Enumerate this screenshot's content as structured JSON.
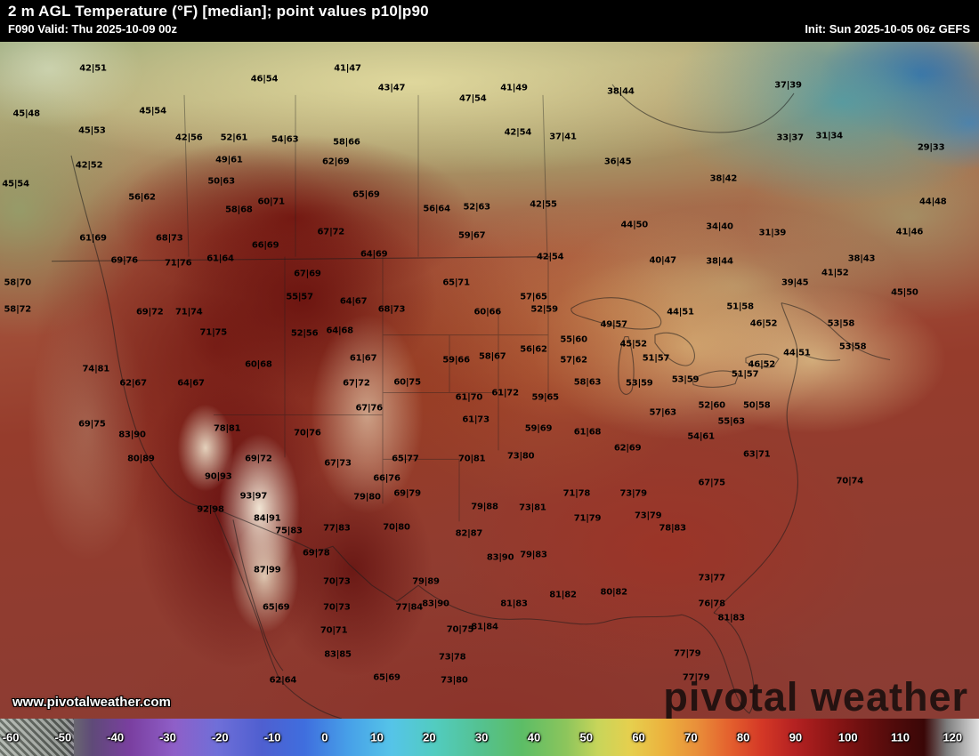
{
  "header": {
    "title": "2 m AGL Temperature (°F) [median]; point values p10|p90",
    "valid": "F090 Valid: Thu 2025-10-09 00z",
    "init": "Init: Sun 2025-10-05 06z GEFS"
  },
  "watermark": {
    "brand": "pivotal weather",
    "url": "www.pivotalweather.com"
  },
  "colorbar": {
    "unit": "°F",
    "range": [
      -60,
      120
    ],
    "ticks": [
      -60,
      -50,
      -40,
      -30,
      -20,
      -10,
      0,
      10,
      20,
      30,
      40,
      50,
      60,
      70,
      80,
      90,
      100,
      110,
      120
    ],
    "stops": [
      {
        "v": -60,
        "c": "#98a096"
      },
      {
        "v": -48,
        "c": "#6e746e"
      },
      {
        "v": -43,
        "c": "#5f4a78"
      },
      {
        "v": -36,
        "c": "#7a3fa0"
      },
      {
        "v": -28,
        "c": "#8f5fc8"
      },
      {
        "v": -20,
        "c": "#6f6fd8"
      },
      {
        "v": -12,
        "c": "#4f5fd0"
      },
      {
        "v": -4,
        "c": "#3f6ede"
      },
      {
        "v": 4,
        "c": "#47a0e8"
      },
      {
        "v": 12,
        "c": "#55c4e8"
      },
      {
        "v": 20,
        "c": "#52ccc0"
      },
      {
        "v": 28,
        "c": "#54c292"
      },
      {
        "v": 36,
        "c": "#5cbd66"
      },
      {
        "v": 44,
        "c": "#8cc55c"
      },
      {
        "v": 50,
        "c": "#c8d55a"
      },
      {
        "v": 56,
        "c": "#e6cf4e"
      },
      {
        "v": 62,
        "c": "#ecb23e"
      },
      {
        "v": 68,
        "c": "#e9903a"
      },
      {
        "v": 74,
        "c": "#e4622e"
      },
      {
        "v": 80,
        "c": "#d43826"
      },
      {
        "v": 86,
        "c": "#b52222"
      },
      {
        "v": 92,
        "c": "#931717"
      },
      {
        "v": 98,
        "c": "#701010"
      },
      {
        "v": 104,
        "c": "#520b0b"
      },
      {
        "v": 110,
        "c": "#3a0707"
      },
      {
        "v": 114,
        "c": "#7d7d7d"
      },
      {
        "v": 120,
        "c": "#e0e0e0"
      }
    ]
  },
  "map": {
    "points": [
      [
        9.5,
        3.9,
        "42|51"
      ],
      [
        27.0,
        5.5,
        "46|54"
      ],
      [
        35.5,
        3.9,
        "41|47"
      ],
      [
        40.0,
        6.8,
        "43|47"
      ],
      [
        52.5,
        6.8,
        "41|49"
      ],
      [
        63.4,
        7.3,
        "38|44"
      ],
      [
        80.5,
        6.4,
        "37|39"
      ],
      [
        2.7,
        10.6,
        "45|48"
      ],
      [
        15.6,
        10.3,
        "45|54"
      ],
      [
        48.3,
        8.4,
        "47|54"
      ],
      [
        9.4,
        13.1,
        "45|53"
      ],
      [
        19.3,
        14.2,
        "42|56"
      ],
      [
        23.9,
        14.2,
        "52|61"
      ],
      [
        29.1,
        14.5,
        "54|63"
      ],
      [
        35.4,
        14.9,
        "58|66"
      ],
      [
        52.9,
        13.4,
        "42|54"
      ],
      [
        57.5,
        14.0,
        "37|41"
      ],
      [
        80.7,
        14.2,
        "33|37"
      ],
      [
        84.7,
        13.9,
        "31|34"
      ],
      [
        95.1,
        15.6,
        "29|33"
      ],
      [
        9.1,
        18.2,
        "42|52"
      ],
      [
        23.4,
        17.5,
        "49|61"
      ],
      [
        34.3,
        17.8,
        "62|69"
      ],
      [
        63.1,
        17.8,
        "36|45"
      ],
      [
        73.9,
        20.3,
        "38|42"
      ],
      [
        1.6,
        21.0,
        "45|54"
      ],
      [
        22.6,
        20.6,
        "50|63"
      ],
      [
        14.5,
        23.0,
        "56|62"
      ],
      [
        37.4,
        22.6,
        "65|69"
      ],
      [
        55.5,
        24.0,
        "42|55"
      ],
      [
        95.3,
        23.6,
        "44|48"
      ],
      [
        24.4,
        24.8,
        "58|68"
      ],
      [
        27.7,
        23.6,
        "60|71"
      ],
      [
        44.6,
        24.7,
        "56|64"
      ],
      [
        48.7,
        24.4,
        "52|63"
      ],
      [
        64.8,
        27.1,
        "44|50"
      ],
      [
        73.5,
        27.3,
        "34|40"
      ],
      [
        78.9,
        28.3,
        "31|39"
      ],
      [
        92.9,
        28.1,
        "41|46"
      ],
      [
        48.2,
        28.6,
        "59|67"
      ],
      [
        33.8,
        28.1,
        "67|72"
      ],
      [
        17.3,
        29.1,
        "68|73"
      ],
      [
        9.5,
        29.1,
        "61|69"
      ],
      [
        27.1,
        30.1,
        "66|69"
      ],
      [
        56.2,
        31.8,
        "42|54"
      ],
      [
        73.5,
        32.5,
        "38|44"
      ],
      [
        88.0,
        32.1,
        "38|43"
      ],
      [
        12.7,
        32.3,
        "69|76"
      ],
      [
        18.2,
        32.7,
        "71|76"
      ],
      [
        22.5,
        32.1,
        "61|64"
      ],
      [
        38.2,
        31.4,
        "64|69"
      ],
      [
        46.6,
        35.6,
        "65|71"
      ],
      [
        31.4,
        34.3,
        "67|69"
      ],
      [
        30.6,
        37.7,
        "55|57"
      ],
      [
        1.8,
        35.6,
        "58|70"
      ],
      [
        1.8,
        39.5,
        "58|72"
      ],
      [
        15.3,
        39.9,
        "69|72"
      ],
      [
        19.3,
        39.9,
        "71|74"
      ],
      [
        21.8,
        43.0,
        "71|75"
      ],
      [
        36.1,
        38.4,
        "64|67"
      ],
      [
        40.0,
        39.5,
        "68|73"
      ],
      [
        54.5,
        37.7,
        "57|65"
      ],
      [
        55.6,
        39.5,
        "52|59"
      ],
      [
        49.8,
        39.9,
        "60|66"
      ],
      [
        58.6,
        44.0,
        "55|60"
      ],
      [
        81.2,
        35.6,
        "39|45"
      ],
      [
        85.3,
        34.2,
        "41|52"
      ],
      [
        92.4,
        37.0,
        "45|50"
      ],
      [
        75.6,
        39.2,
        "51|58"
      ],
      [
        78.0,
        41.6,
        "46|52"
      ],
      [
        85.9,
        41.6,
        "53|58"
      ],
      [
        62.7,
        41.8,
        "49|57"
      ],
      [
        67.0,
        46.8,
        "51|57"
      ],
      [
        69.5,
        40.0,
        "44|51"
      ],
      [
        31.1,
        43.1,
        "52|56"
      ],
      [
        34.7,
        42.7,
        "64|68"
      ],
      [
        37.1,
        46.8,
        "61|67"
      ],
      [
        36.4,
        50.4,
        "67|72"
      ],
      [
        37.7,
        54.2,
        "67|76"
      ],
      [
        41.6,
        50.3,
        "60|75"
      ],
      [
        46.6,
        47.1,
        "59|66"
      ],
      [
        50.3,
        46.5,
        "58|67"
      ],
      [
        54.5,
        45.5,
        "56|62"
      ],
      [
        58.6,
        47.1,
        "57|62"
      ],
      [
        60.0,
        50.3,
        "58|63"
      ],
      [
        65.3,
        50.4,
        "53|59"
      ],
      [
        70.0,
        49.9,
        "53|59"
      ],
      [
        76.1,
        49.1,
        "51|57"
      ],
      [
        77.8,
        47.7,
        "46|52"
      ],
      [
        81.4,
        46.0,
        "44|51"
      ],
      [
        87.1,
        45.1,
        "53|58"
      ],
      [
        64.7,
        44.7,
        "45|52"
      ],
      [
        13.6,
        50.5,
        "62|67"
      ],
      [
        19.5,
        50.5,
        "64|67"
      ],
      [
        26.4,
        47.7,
        "60|68"
      ],
      [
        9.8,
        48.3,
        "74|81"
      ],
      [
        9.4,
        56.5,
        "69|75"
      ],
      [
        13.5,
        58.1,
        "83|90"
      ],
      [
        14.4,
        61.6,
        "80|89"
      ],
      [
        22.3,
        64.3,
        "90|93"
      ],
      [
        25.9,
        67.1,
        "93|97"
      ],
      [
        27.3,
        70.4,
        "84|91"
      ],
      [
        21.5,
        69.1,
        "92|98"
      ],
      [
        29.5,
        72.3,
        "75|83"
      ],
      [
        27.3,
        78.1,
        "87|99"
      ],
      [
        32.3,
        75.6,
        "69|78"
      ],
      [
        31.4,
        57.8,
        "70|76"
      ],
      [
        23.2,
        57.1,
        "78|81"
      ],
      [
        26.4,
        61.6,
        "69|72"
      ],
      [
        34.5,
        62.3,
        "67|73"
      ],
      [
        41.4,
        61.6,
        "65|77"
      ],
      [
        39.5,
        64.5,
        "66|76"
      ],
      [
        41.6,
        66.8,
        "69|79"
      ],
      [
        37.5,
        67.3,
        "79|80"
      ],
      [
        40.5,
        71.7,
        "70|80"
      ],
      [
        34.4,
        71.9,
        "77|83"
      ],
      [
        47.9,
        72.7,
        "82|87"
      ],
      [
        49.5,
        68.7,
        "79|88"
      ],
      [
        48.2,
        61.6,
        "70|81"
      ],
      [
        48.6,
        55.8,
        "61|73"
      ],
      [
        47.9,
        52.5,
        "61|70"
      ],
      [
        53.2,
        61.3,
        "73|80"
      ],
      [
        55.0,
        57.1,
        "59|69"
      ],
      [
        55.7,
        52.5,
        "59|65"
      ],
      [
        51.6,
        51.9,
        "61|72"
      ],
      [
        64.1,
        60.0,
        "62|69"
      ],
      [
        60.0,
        57.7,
        "61|68"
      ],
      [
        77.3,
        61.0,
        "63|71"
      ],
      [
        71.6,
        58.3,
        "54|61"
      ],
      [
        67.7,
        54.8,
        "57|63"
      ],
      [
        74.7,
        56.1,
        "55|63"
      ],
      [
        72.7,
        53.8,
        "52|60"
      ],
      [
        77.3,
        53.8,
        "50|58"
      ],
      [
        72.7,
        65.2,
        "67|75"
      ],
      [
        86.8,
        64.9,
        "70|74"
      ],
      [
        64.7,
        66.8,
        "73|79"
      ],
      [
        66.2,
        70.1,
        "73|79"
      ],
      [
        58.9,
        66.8,
        "71|78"
      ],
      [
        54.4,
        68.8,
        "73|81"
      ],
      [
        60.0,
        70.4,
        "71|79"
      ],
      [
        68.7,
        71.9,
        "78|83"
      ],
      [
        54.5,
        75.8,
        "79|83"
      ],
      [
        51.1,
        76.2,
        "83|90"
      ],
      [
        52.5,
        83.1,
        "81|83"
      ],
      [
        57.5,
        81.7,
        "81|82"
      ],
      [
        62.7,
        81.4,
        "80|82"
      ],
      [
        72.7,
        79.2,
        "73|77"
      ],
      [
        72.7,
        83.1,
        "76|78"
      ],
      [
        74.7,
        85.1,
        "81|83"
      ],
      [
        71.1,
        94.0,
        "77|79"
      ],
      [
        70.2,
        90.4,
        "77|79"
      ],
      [
        34.4,
        79.7,
        "70|73"
      ],
      [
        34.4,
        83.6,
        "70|73"
      ],
      [
        44.5,
        83.1,
        "83|90"
      ],
      [
        41.8,
        83.6,
        "77|84"
      ],
      [
        43.5,
        79.7,
        "79|89"
      ],
      [
        28.2,
        83.6,
        "65|69"
      ],
      [
        34.1,
        87.0,
        "70|71"
      ],
      [
        34.5,
        90.5,
        "83|85"
      ],
      [
        28.9,
        94.4,
        "62|64"
      ],
      [
        39.5,
        94.0,
        "65|69"
      ],
      [
        46.2,
        90.9,
        "73|78"
      ],
      [
        47.0,
        86.8,
        "70|75"
      ],
      [
        46.4,
        94.4,
        "73|80"
      ],
      [
        49.5,
        86.4,
        "81|84"
      ],
      [
        67.7,
        32.3,
        "40|47"
      ]
    ]
  }
}
